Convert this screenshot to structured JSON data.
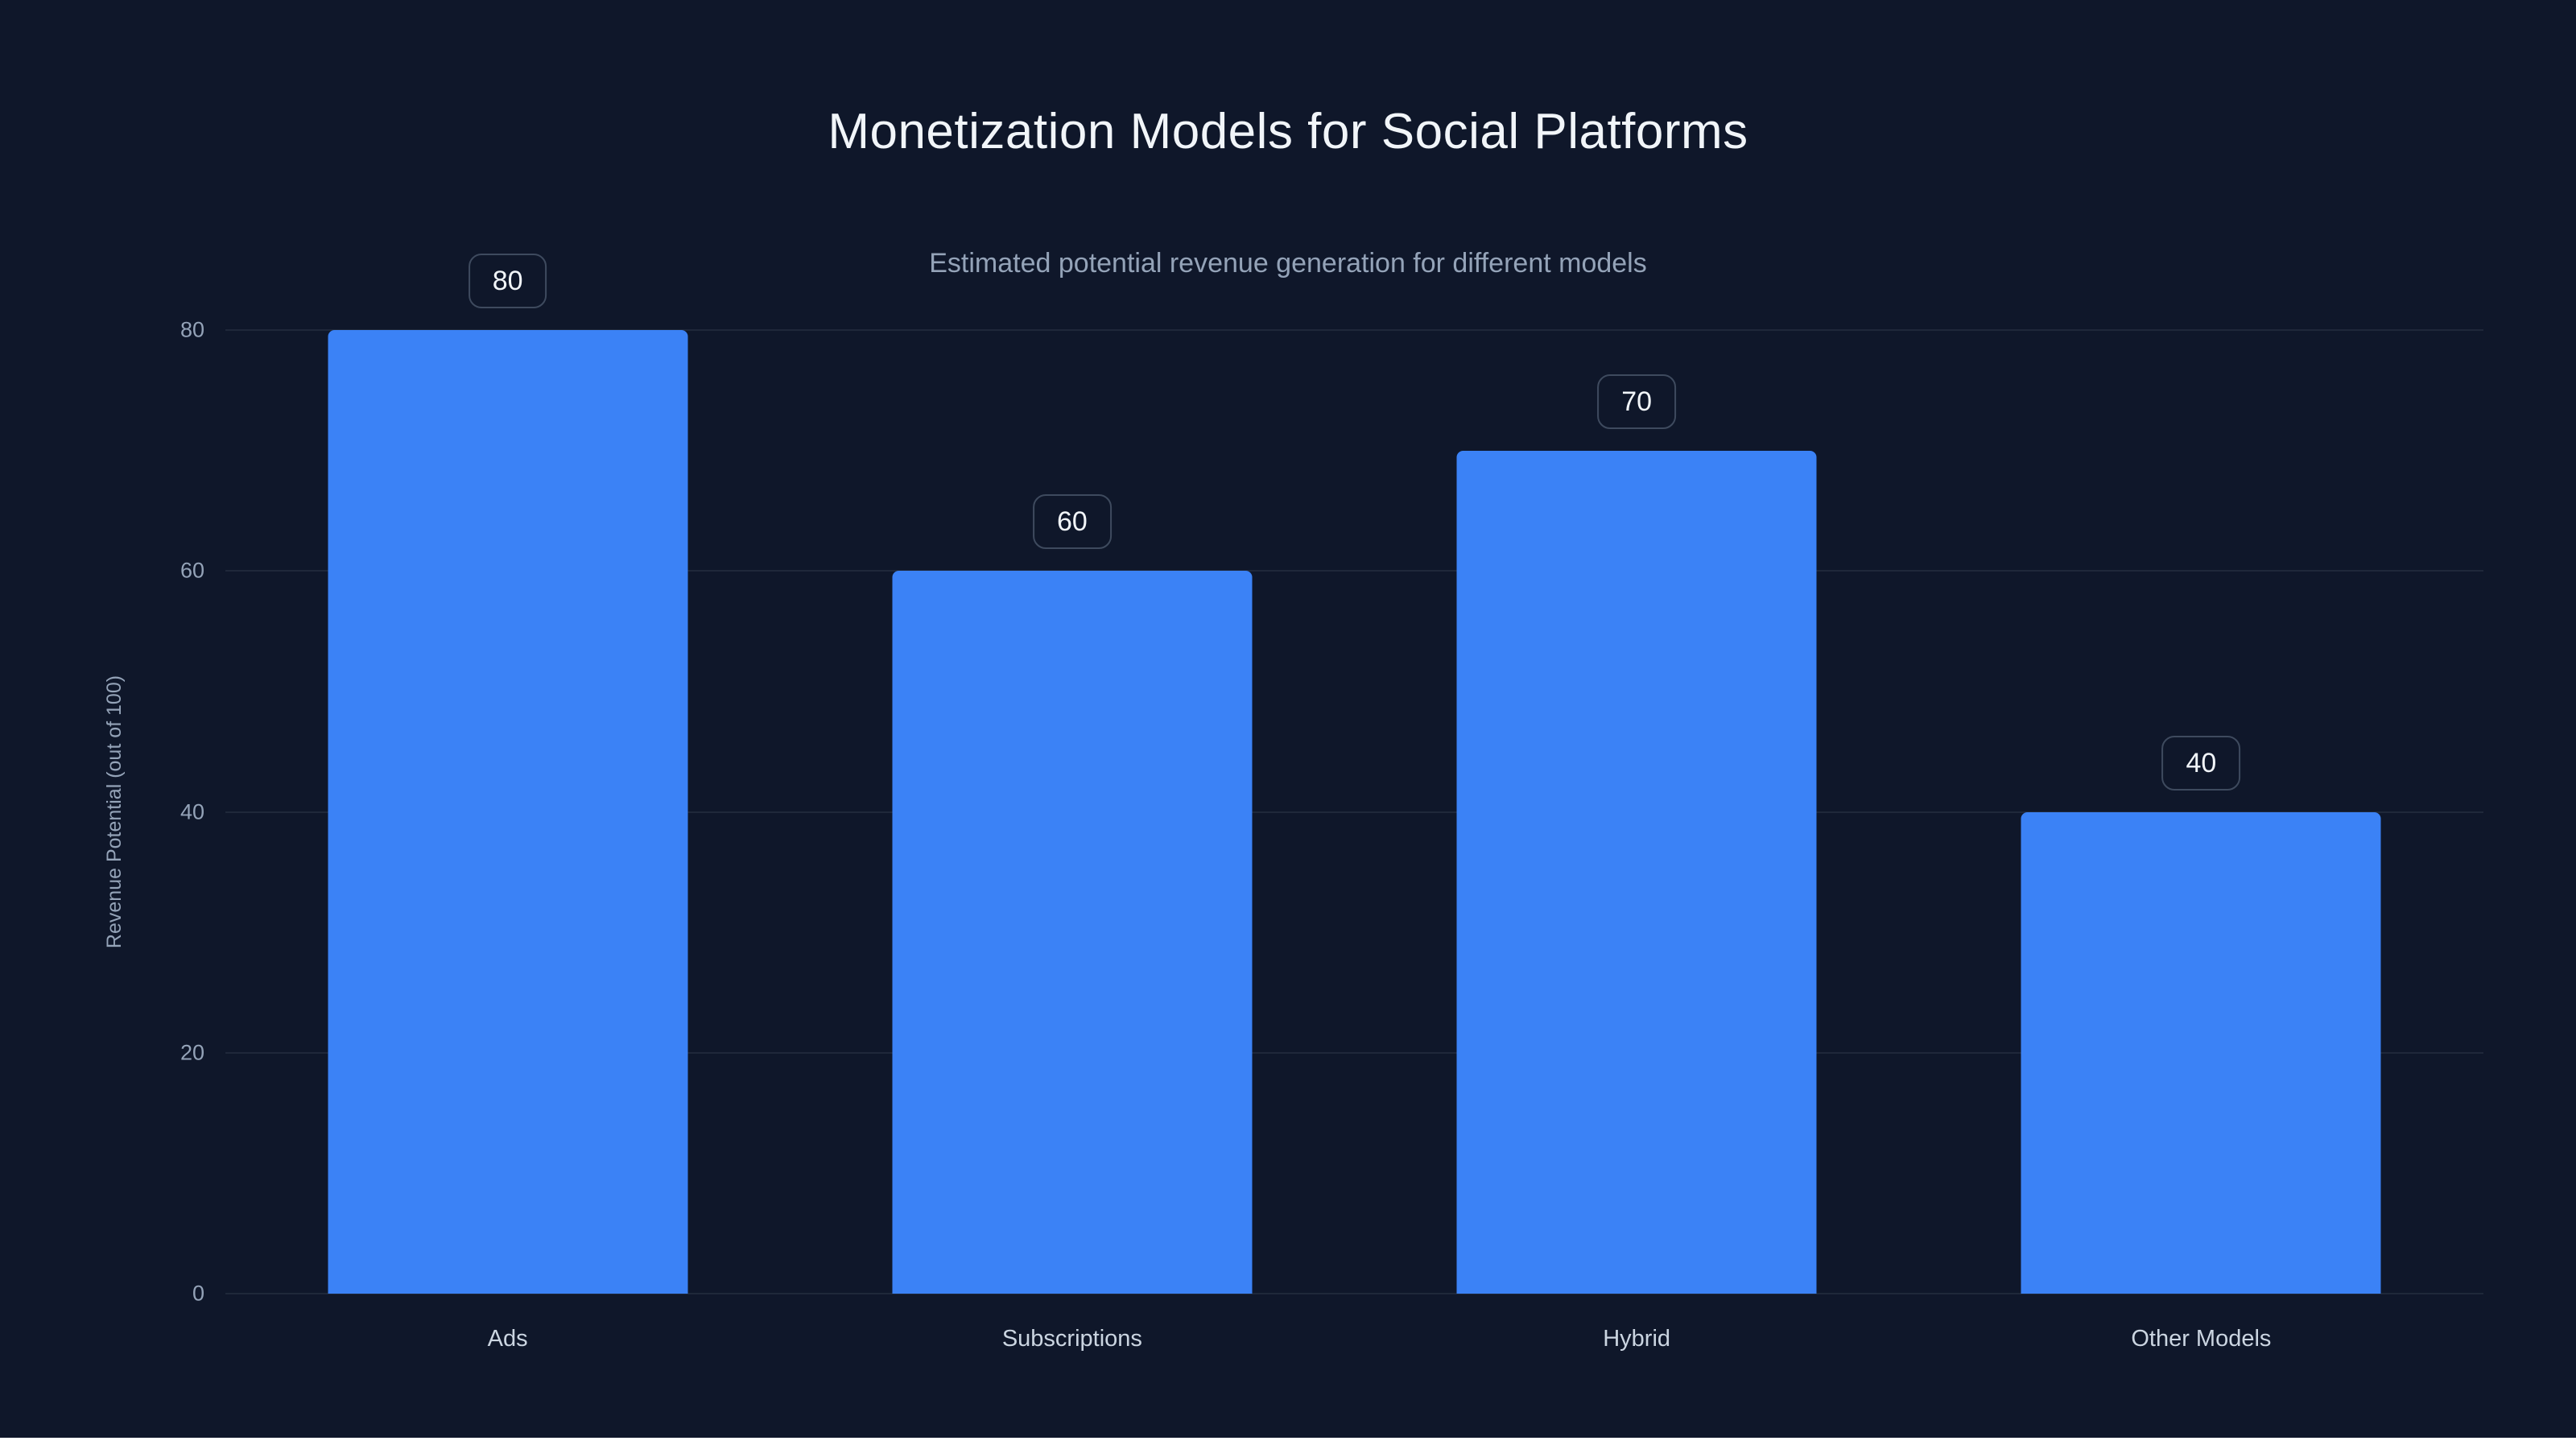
{
  "page": {
    "background_color": "#0f172a",
    "bottom_strip_color": "#ffffff"
  },
  "chart_data": {
    "type": "bar",
    "title": "Monetization Models for Social Platforms",
    "subtitle": "Estimated potential revenue generation for different models",
    "xlabel": "",
    "ylabel": "Revenue Potential (out of 100)",
    "categories": [
      "Ads",
      "Subscriptions",
      "Hybrid",
      "Other Models"
    ],
    "values": [
      80,
      60,
      70,
      40
    ],
    "yticks": [
      0,
      20,
      40,
      60,
      80
    ],
    "ylim": [
      0,
      80
    ],
    "bar_color": "#3b82f6",
    "grid": true,
    "legend_position": "none",
    "value_label_style": "rounded badge above each bar"
  }
}
